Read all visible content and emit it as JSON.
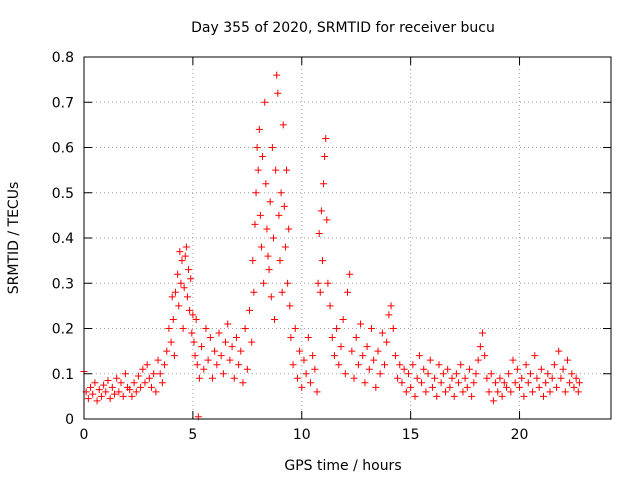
{
  "chart_data": {
    "type": "scatter",
    "title": "Day 355 of 2020, SRMTID for receiver bucu",
    "xlabel": "GPS time / hours",
    "ylabel": "SRMTID / TECUs",
    "xlim": [
      0,
      24.2
    ],
    "ylim": [
      0,
      0.8
    ],
    "xticks": [
      0,
      5,
      10,
      15,
      20
    ],
    "yticks": [
      0,
      0.1,
      0.2,
      0.3,
      0.4,
      0.5,
      0.6,
      0.7,
      0.8
    ],
    "xtick_labels": [
      "0",
      "5",
      "10",
      "15",
      "20"
    ],
    "ytick_labels": [
      "0",
      "0.1",
      "0.2",
      "0.3",
      "0.4",
      "0.5",
      "0.6",
      "0.7",
      "0.8"
    ],
    "grid": true,
    "legend": "none",
    "marker": "+",
    "series": [
      {
        "name": "SRMTID",
        "color": "#ff0000",
        "points": [
          [
            0.0,
            0.105
          ],
          [
            0.1,
            0.06
          ],
          [
            0.2,
            0.045
          ],
          [
            0.3,
            0.07
          ],
          [
            0.4,
            0.055
          ],
          [
            0.5,
            0.08
          ],
          [
            0.6,
            0.04
          ],
          [
            0.7,
            0.065
          ],
          [
            0.8,
            0.05
          ],
          [
            0.9,
            0.075
          ],
          [
            1.0,
            0.06
          ],
          [
            1.1,
            0.085
          ],
          [
            1.2,
            0.045
          ],
          [
            1.3,
            0.07
          ],
          [
            1.4,
            0.055
          ],
          [
            1.5,
            0.09
          ],
          [
            1.6,
            0.06
          ],
          [
            1.7,
            0.08
          ],
          [
            1.8,
            0.05
          ],
          [
            1.9,
            0.1
          ],
          [
            2.0,
            0.07
          ],
          [
            2.1,
            0.065
          ],
          [
            2.2,
            0.05
          ],
          [
            2.3,
            0.08
          ],
          [
            2.4,
            0.06
          ],
          [
            2.5,
            0.095
          ],
          [
            2.6,
            0.07
          ],
          [
            2.7,
            0.11
          ],
          [
            2.8,
            0.08
          ],
          [
            2.9,
            0.12
          ],
          [
            3.0,
            0.09
          ],
          [
            3.1,
            0.07
          ],
          [
            3.2,
            0.1
          ],
          [
            3.3,
            0.06
          ],
          [
            3.4,
            0.13
          ],
          [
            3.5,
            0.1
          ],
          [
            3.6,
            0.08
          ],
          [
            3.7,
            0.12
          ],
          [
            3.8,
            0.15
          ],
          [
            3.9,
            0.2
          ],
          [
            4.0,
            0.17
          ],
          [
            4.05,
            0.27
          ],
          [
            4.1,
            0.22
          ],
          [
            4.15,
            0.14
          ],
          [
            4.2,
            0.28
          ],
          [
            4.3,
            0.32
          ],
          [
            4.35,
            0.25
          ],
          [
            4.4,
            0.37
          ],
          [
            4.45,
            0.3
          ],
          [
            4.5,
            0.35
          ],
          [
            4.55,
            0.2
          ],
          [
            4.6,
            0.29
          ],
          [
            4.65,
            0.36
          ],
          [
            4.7,
            0.38
          ],
          [
            4.75,
            0.27
          ],
          [
            4.8,
            0.33
          ],
          [
            4.85,
            0.24
          ],
          [
            4.9,
            0.31
          ],
          [
            4.95,
            0.19
          ],
          [
            5.0,
            0.23
          ],
          [
            5.05,
            0.17
          ],
          [
            5.1,
            0.14
          ],
          [
            5.15,
            0.22
          ],
          [
            5.2,
            0.12
          ],
          [
            5.25,
            0.005
          ],
          [
            5.3,
            0.09
          ],
          [
            5.4,
            0.16
          ],
          [
            5.5,
            0.11
          ],
          [
            5.6,
            0.2
          ],
          [
            5.7,
            0.13
          ],
          [
            5.8,
            0.18
          ],
          [
            5.9,
            0.09
          ],
          [
            6.0,
            0.15
          ],
          [
            6.1,
            0.12
          ],
          [
            6.2,
            0.19
          ],
          [
            6.3,
            0.14
          ],
          [
            6.4,
            0.1
          ],
          [
            6.5,
            0.17
          ],
          [
            6.6,
            0.21
          ],
          [
            6.7,
            0.13
          ],
          [
            6.8,
            0.16
          ],
          [
            6.9,
            0.09
          ],
          [
            7.0,
            0.18
          ],
          [
            7.1,
            0.12
          ],
          [
            7.2,
            0.15
          ],
          [
            7.3,
            0.08
          ],
          [
            7.4,
            0.2
          ],
          [
            7.5,
            0.11
          ],
          [
            7.6,
            0.24
          ],
          [
            7.7,
            0.17
          ],
          [
            7.75,
            0.35
          ],
          [
            7.8,
            0.28
          ],
          [
            7.85,
            0.43
          ],
          [
            7.9,
            0.5
          ],
          [
            7.95,
            0.6
          ],
          [
            8.0,
            0.55
          ],
          [
            8.05,
            0.64
          ],
          [
            8.1,
            0.45
          ],
          [
            8.15,
            0.38
          ],
          [
            8.2,
            0.58
          ],
          [
            8.25,
            0.3
          ],
          [
            8.3,
            0.7
          ],
          [
            8.35,
            0.52
          ],
          [
            8.4,
            0.42
          ],
          [
            8.45,
            0.36
          ],
          [
            8.5,
            0.33
          ],
          [
            8.55,
            0.48
          ],
          [
            8.6,
            0.27
          ],
          [
            8.65,
            0.6
          ],
          [
            8.7,
            0.4
          ],
          [
            8.75,
            0.22
          ],
          [
            8.8,
            0.55
          ],
          [
            8.85,
            0.76
          ],
          [
            8.9,
            0.72
          ],
          [
            8.95,
            0.45
          ],
          [
            9.0,
            0.35
          ],
          [
            9.05,
            0.5
          ],
          [
            9.1,
            0.28
          ],
          [
            9.15,
            0.65
          ],
          [
            9.2,
            0.47
          ],
          [
            9.25,
            0.38
          ],
          [
            9.3,
            0.55
          ],
          [
            9.35,
            0.3
          ],
          [
            9.4,
            0.42
          ],
          [
            9.45,
            0.25
          ],
          [
            9.5,
            0.18
          ],
          [
            9.6,
            0.12
          ],
          [
            9.7,
            0.2
          ],
          [
            9.8,
            0.09
          ],
          [
            9.9,
            0.15
          ],
          [
            10.0,
            0.07
          ],
          [
            10.1,
            0.13
          ],
          [
            10.2,
            0.1
          ],
          [
            10.3,
            0.18
          ],
          [
            10.4,
            0.08
          ],
          [
            10.5,
            0.14
          ],
          [
            10.6,
            0.11
          ],
          [
            10.7,
            0.06
          ],
          [
            10.75,
            0.3
          ],
          [
            10.8,
            0.41
          ],
          [
            10.85,
            0.28
          ],
          [
            10.9,
            0.46
          ],
          [
            10.95,
            0.35
          ],
          [
            11.0,
            0.52
          ],
          [
            11.05,
            0.58
          ],
          [
            11.1,
            0.62
          ],
          [
            11.15,
            0.44
          ],
          [
            11.2,
            0.3
          ],
          [
            11.3,
            0.25
          ],
          [
            11.4,
            0.18
          ],
          [
            11.5,
            0.14
          ],
          [
            11.6,
            0.2
          ],
          [
            11.7,
            0.12
          ],
          [
            11.8,
            0.16
          ],
          [
            11.9,
            0.22
          ],
          [
            12.0,
            0.1
          ],
          [
            12.1,
            0.28
          ],
          [
            12.2,
            0.32
          ],
          [
            12.3,
            0.15
          ],
          [
            12.4,
            0.09
          ],
          [
            12.5,
            0.18
          ],
          [
            12.6,
            0.12
          ],
          [
            12.7,
            0.21
          ],
          [
            12.8,
            0.14
          ],
          [
            12.9,
            0.08
          ],
          [
            13.0,
            0.16
          ],
          [
            13.1,
            0.11
          ],
          [
            13.2,
            0.2
          ],
          [
            13.3,
            0.13
          ],
          [
            13.4,
            0.07
          ],
          [
            13.5,
            0.15
          ],
          [
            13.6,
            0.1
          ],
          [
            13.7,
            0.19
          ],
          [
            13.8,
            0.12
          ],
          [
            13.9,
            0.17
          ],
          [
            14.0,
            0.23
          ],
          [
            14.1,
            0.25
          ],
          [
            14.2,
            0.2
          ],
          [
            14.3,
            0.14
          ],
          [
            14.4,
            0.09
          ],
          [
            14.5,
            0.12
          ],
          [
            14.6,
            0.08
          ],
          [
            14.7,
            0.11
          ],
          [
            14.8,
            0.06
          ],
          [
            14.9,
            0.1
          ],
          [
            15.0,
            0.07
          ],
          [
            15.1,
            0.12
          ],
          [
            15.2,
            0.05
          ],
          [
            15.3,
            0.09
          ],
          [
            15.4,
            0.14
          ],
          [
            15.5,
            0.08
          ],
          [
            15.6,
            0.11
          ],
          [
            15.7,
            0.06
          ],
          [
            15.8,
            0.1
          ],
          [
            15.9,
            0.13
          ],
          [
            16.0,
            0.07
          ],
          [
            16.1,
            0.09
          ],
          [
            16.2,
            0.05
          ],
          [
            16.3,
            0.12
          ],
          [
            16.4,
            0.08
          ],
          [
            16.5,
            0.1
          ],
          [
            16.6,
            0.06
          ],
          [
            16.7,
            0.11
          ],
          [
            16.8,
            0.07
          ],
          [
            16.9,
            0.09
          ],
          [
            17.0,
            0.05
          ],
          [
            17.1,
            0.1
          ],
          [
            17.2,
            0.08
          ],
          [
            17.3,
            0.12
          ],
          [
            17.4,
            0.06
          ],
          [
            17.5,
            0.09
          ],
          [
            17.6,
            0.07
          ],
          [
            17.7,
            0.11
          ],
          [
            17.8,
            0.05
          ],
          [
            17.9,
            0.08
          ],
          [
            18.0,
            0.1
          ],
          [
            18.1,
            0.13
          ],
          [
            18.2,
            0.16
          ],
          [
            18.3,
            0.19
          ],
          [
            18.4,
            0.14
          ],
          [
            18.5,
            0.09
          ],
          [
            18.6,
            0.06
          ],
          [
            18.7,
            0.1
          ],
          [
            18.8,
            0.04
          ],
          [
            18.9,
            0.08
          ],
          [
            19.0,
            0.06
          ],
          [
            19.1,
            0.09
          ],
          [
            19.2,
            0.05
          ],
          [
            19.3,
            0.08
          ],
          [
            19.4,
            0.07
          ],
          [
            19.5,
            0.1
          ],
          [
            19.6,
            0.06
          ],
          [
            19.7,
            0.13
          ],
          [
            19.8,
            0.08
          ],
          [
            19.9,
            0.11
          ],
          [
            20.0,
            0.07
          ],
          [
            20.1,
            0.09
          ],
          [
            20.2,
            0.05
          ],
          [
            20.3,
            0.12
          ],
          [
            20.4,
            0.08
          ],
          [
            20.5,
            0.1
          ],
          [
            20.6,
            0.06
          ],
          [
            20.7,
            0.14
          ],
          [
            20.8,
            0.09
          ],
          [
            20.9,
            0.07
          ],
          [
            21.0,
            0.11
          ],
          [
            21.1,
            0.05
          ],
          [
            21.2,
            0.08
          ],
          [
            21.3,
            0.1
          ],
          [
            21.4,
            0.06
          ],
          [
            21.5,
            0.09
          ],
          [
            21.6,
            0.12
          ],
          [
            21.7,
            0.07
          ],
          [
            21.8,
            0.15
          ],
          [
            21.9,
            0.09
          ],
          [
            22.0,
            0.11
          ],
          [
            22.1,
            0.06
          ],
          [
            22.2,
            0.13
          ],
          [
            22.3,
            0.08
          ],
          [
            22.4,
            0.1
          ],
          [
            22.5,
            0.07
          ],
          [
            22.6,
            0.09
          ],
          [
            22.7,
            0.06
          ],
          [
            22.75,
            0.08
          ]
        ]
      }
    ]
  }
}
